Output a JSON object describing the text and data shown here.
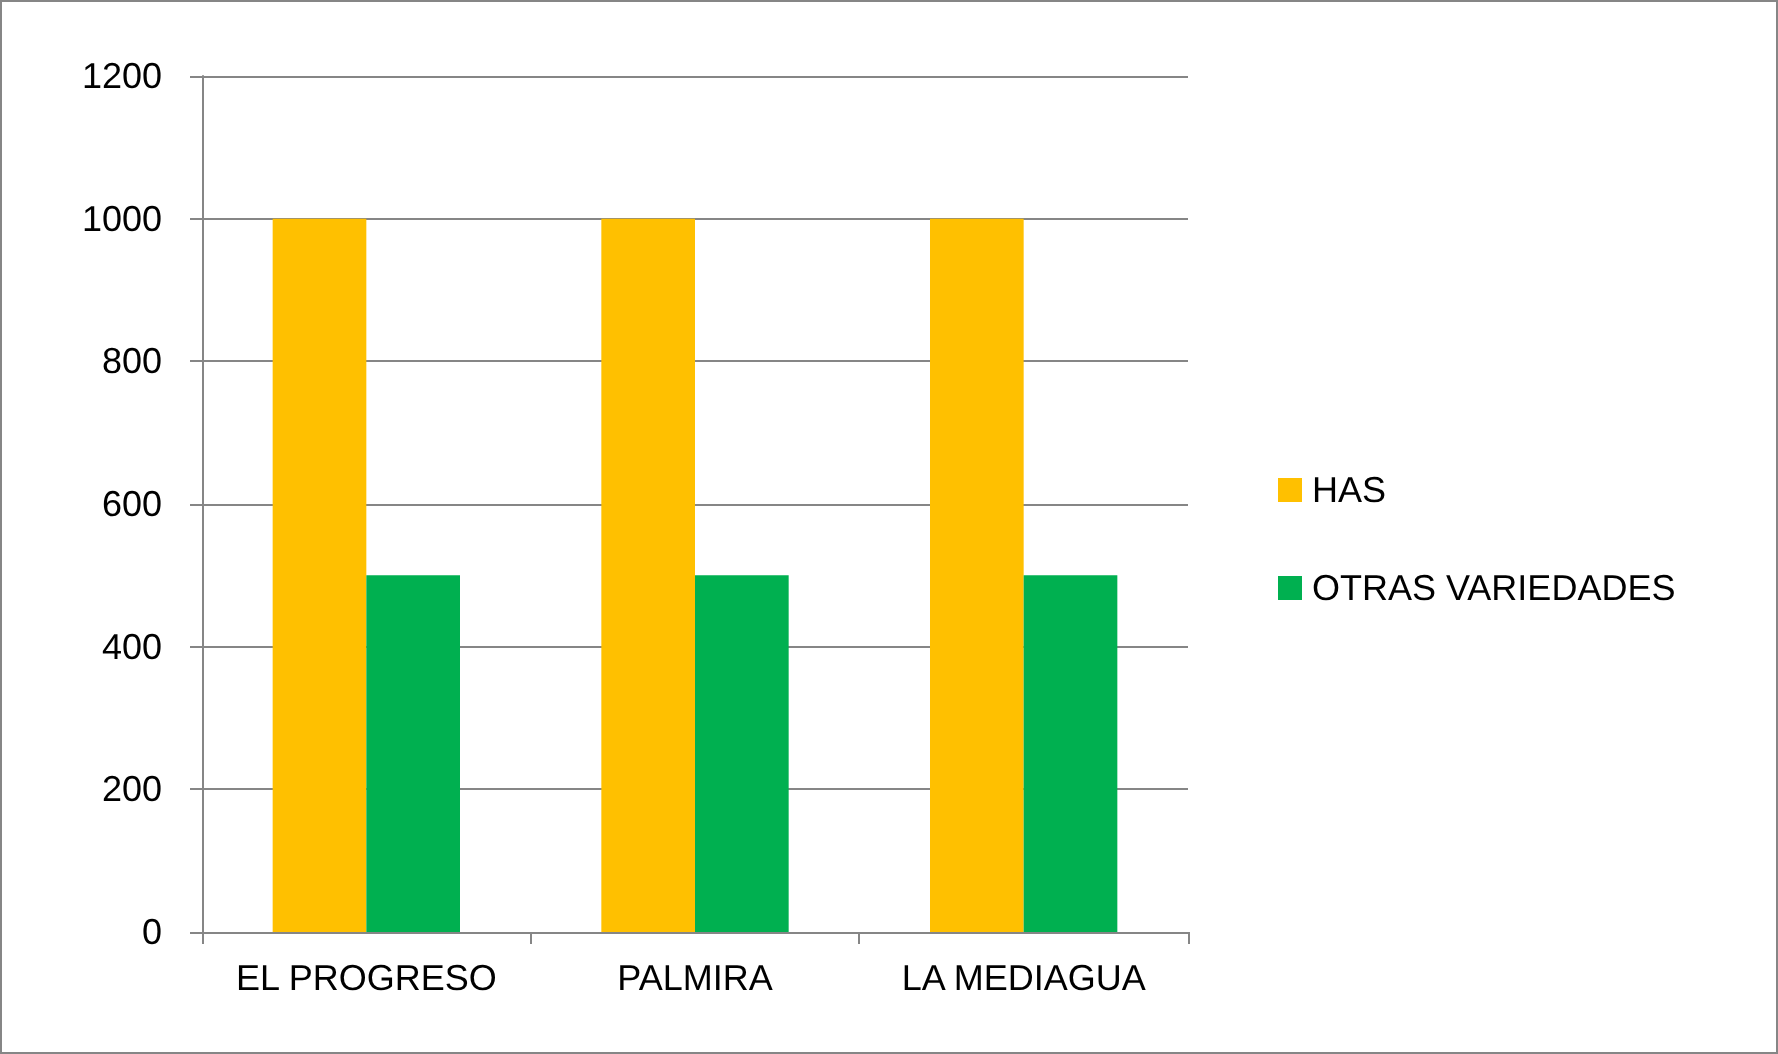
{
  "chart_data": {
    "type": "bar",
    "categories": [
      "EL PROGRESO",
      "PALMIRA",
      "LA MEDIAGUA"
    ],
    "series": [
      {
        "name": "HAS",
        "color": "#ffc000",
        "values": [
          1000,
          1000,
          1000
        ]
      },
      {
        "name": "OTRAS VARIEDADES",
        "color": "#00b050",
        "values": [
          500,
          500,
          500
        ]
      }
    ],
    "ylim": [
      0,
      1200
    ],
    "yticks": [
      0,
      200,
      400,
      600,
      800,
      1000,
      1200
    ],
    "grid": "y",
    "legend": "right"
  }
}
